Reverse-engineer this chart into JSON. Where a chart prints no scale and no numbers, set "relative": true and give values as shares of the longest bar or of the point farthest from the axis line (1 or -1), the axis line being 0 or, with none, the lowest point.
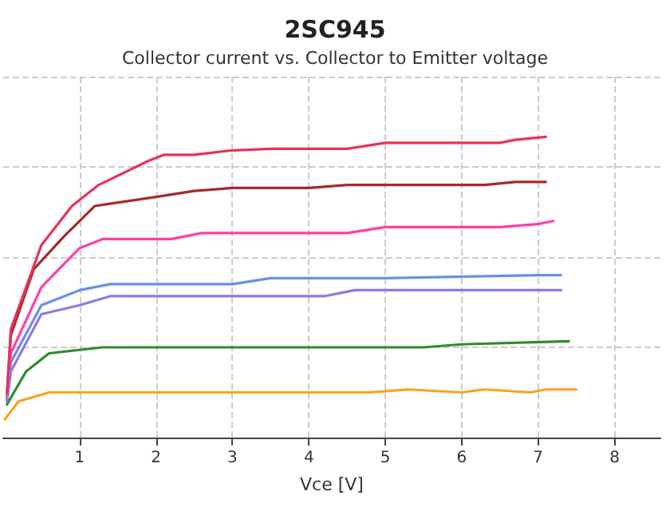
{
  "chart_data": {
    "type": "line",
    "title": "2SC945",
    "subtitle": "Collector current vs. Collector to Emitter voltage",
    "xlabel": "Vce [V]",
    "relative": true,
    "xlim": [
      0,
      8.6
    ],
    "xticks": [
      1,
      2,
      3,
      4,
      5,
      6,
      7,
      8
    ],
    "grid": true,
    "marker": "none",
    "line_style": "solid",
    "series": [
      {
        "color": "#6a8ee8",
        "x": [
          0.05,
          0.1,
          0.5,
          1,
          1.4,
          3,
          3.5,
          5,
          7,
          7.3
        ],
        "values": [
          0.12,
          0.25,
          0.44,
          0.49,
          0.51,
          0.51,
          0.53,
          0.53,
          0.54,
          0.54
        ]
      },
      {
        "color": "#2e8b2e",
        "x": [
          0.05,
          0.3,
          0.6,
          1.3,
          5.5,
          6,
          7.4
        ],
        "values": [
          0.11,
          0.22,
          0.28,
          0.3,
          0.3,
          0.31,
          0.32
        ]
      },
      {
        "color": "#a52a2a",
        "x": [
          0.05,
          0.1,
          0.4,
          0.8,
          1.2,
          2,
          2.5,
          3,
          4,
          4.5,
          5,
          6.3,
          6.7,
          7.1
        ],
        "values": [
          0.14,
          0.34,
          0.56,
          0.67,
          0.77,
          0.8,
          0.82,
          0.83,
          0.83,
          0.84,
          0.84,
          0.84,
          0.85,
          0.85
        ]
      },
      {
        "color": "#ffa020",
        "x": [
          0.02,
          0.2,
          0.6,
          4.8,
          5.3,
          6,
          6.3,
          6.9,
          7.1,
          7.5
        ],
        "values": [
          0.06,
          0.12,
          0.15,
          0.15,
          0.16,
          0.15,
          0.16,
          0.15,
          0.16,
          0.16
        ]
      },
      {
        "color": "#ff3fa8",
        "x": [
          0.05,
          0.1,
          0.5,
          1,
          1.3,
          2.2,
          2.6,
          4.5,
          5,
          6.5,
          7,
          7.2
        ],
        "values": [
          0.13,
          0.28,
          0.5,
          0.63,
          0.66,
          0.66,
          0.68,
          0.68,
          0.7,
          0.7,
          0.71,
          0.72
        ]
      },
      {
        "color": "#8a7ce0",
        "x": [
          0.05,
          0.1,
          0.5,
          1,
          1.4,
          4.2,
          4.6,
          5,
          7.3
        ],
        "values": [
          0.12,
          0.22,
          0.41,
          0.44,
          0.47,
          0.47,
          0.49,
          0.49,
          0.49
        ]
      },
      {
        "color": "#e8325a",
        "x": [
          0.05,
          0.1,
          0.5,
          0.9,
          1.25,
          1.9,
          2.1,
          2.5,
          3,
          3.5,
          4.5,
          5,
          6,
          6.5,
          6.7,
          7.1
        ],
        "values": [
          0.15,
          0.36,
          0.64,
          0.77,
          0.84,
          0.92,
          0.94,
          0.94,
          0.955,
          0.96,
          0.96,
          0.98,
          0.98,
          0.98,
          0.99,
          1
        ]
      }
    ]
  }
}
